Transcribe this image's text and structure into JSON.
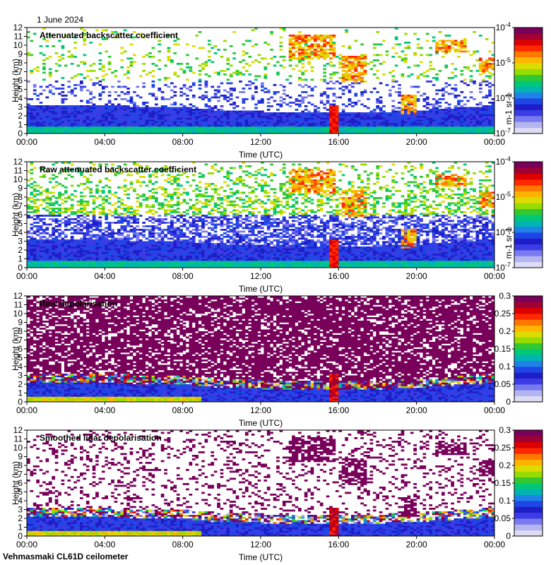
{
  "date": "1 June 2024",
  "instrument": "Vehmasmaki CL61D ceilometer",
  "colors": {
    "colormap": [
      "#dcdcf5",
      "#b4b4f0",
      "#7a7af0",
      "#3c3ce6",
      "#1e1ec8",
      "#1e46e6",
      "#1e82e6",
      "#00b4b4",
      "#00c878",
      "#32c832",
      "#96dc00",
      "#dcdc00",
      "#ffb400",
      "#ff7800",
      "#ff2800",
      "#dc0000",
      "#a00032",
      "#78005a"
    ]
  },
  "chart_data": [
    {
      "type": "heatmap",
      "title": "Attenuated backscatter coefficient",
      "xlabel": "Time (UTC)",
      "ylabel": "Height (km)",
      "xlim": [
        0,
        24
      ],
      "ylim": [
        0,
        12
      ],
      "x_ticks": [
        "00:00",
        "04:00",
        "08:00",
        "12:00",
        "16:00",
        "20:00",
        "00:00"
      ],
      "y_ticks": [
        "0",
        "1",
        "2",
        "3",
        "4",
        "5",
        "6",
        "7",
        "8",
        "9",
        "10",
        "11",
        "12"
      ],
      "colorbar": {
        "scale": "log",
        "ticks": [
          "10-7",
          "10-6",
          "10-5",
          "10-4"
        ],
        "min_exp": -7,
        "max_exp": -4,
        "label": "m-1 sr-1"
      },
      "noise_level": 0.32
    },
    {
      "type": "heatmap",
      "title": "Raw attenuated backscatter coefficient",
      "xlabel": "Time (UTC)",
      "ylabel": "Height (km)",
      "xlim": [
        0,
        24
      ],
      "ylim": [
        0,
        12
      ],
      "x_ticks": [
        "00:00",
        "04:00",
        "08:00",
        "12:00",
        "16:00",
        "20:00",
        "00:00"
      ],
      "y_ticks": [
        "0",
        "1",
        "2",
        "3",
        "4",
        "5",
        "6",
        "7",
        "8",
        "9",
        "10",
        "11",
        "12"
      ],
      "colorbar": {
        "scale": "log",
        "ticks": [
          "10-7",
          "10-6",
          "10-5",
          "10-4"
        ],
        "min_exp": -7,
        "max_exp": -4,
        "label": "m-1 sr-1"
      },
      "noise_level": 0.85
    },
    {
      "type": "heatmap",
      "title": "Raw depolarisation",
      "xlabel": "Time (UTC)",
      "ylabel": "Height (km)",
      "xlim": [
        0,
        24
      ],
      "ylim": [
        0,
        12
      ],
      "x_ticks": [
        "00:00",
        "04:00",
        "08:00",
        "12:00",
        "16:00",
        "20:00",
        "00:00"
      ],
      "y_ticks": [
        "0",
        "1",
        "2",
        "3",
        "4",
        "5",
        "6",
        "7",
        "8",
        "9",
        "10",
        "11",
        "12"
      ],
      "colorbar": {
        "scale": "linear",
        "ticks": [
          "0",
          "0.05",
          "0.1",
          "0.15",
          "0.2",
          "0.25",
          "0.3"
        ],
        "min": 0,
        "max": 0.3
      },
      "noise_level": 0.75
    },
    {
      "type": "heatmap",
      "title": "Smoothed lidar depolarisation",
      "xlabel": "Time (UTC)",
      "ylabel": "Height (km)",
      "xlim": [
        0,
        24
      ],
      "ylim": [
        0,
        12
      ],
      "x_ticks": [
        "00:00",
        "04:00",
        "08:00",
        "12:00",
        "16:00",
        "20:00",
        "00:00"
      ],
      "y_ticks": [
        "0",
        "1",
        "2",
        "3",
        "4",
        "5",
        "6",
        "7",
        "8",
        "9",
        "10",
        "11",
        "12"
      ],
      "colorbar": {
        "scale": "linear",
        "ticks": [
          "0",
          "0.05",
          "0.1",
          "0.15",
          "0.2",
          "0.25",
          "0.3"
        ],
        "min": 0,
        "max": 0.3
      },
      "noise_level": 0.18
    }
  ],
  "features": {
    "boundary_layer_top_km": {
      "times": [
        0,
        8,
        10,
        16,
        20,
        24
      ],
      "heights": [
        3.3,
        3.0,
        2.6,
        2.3,
        2.6,
        3.2
      ]
    },
    "precipitation_shaft": {
      "time_start": 15.6,
      "time_end": 16.0,
      "height_top_km": 3.2
    },
    "clouds": [
      {
        "time_start": 13.4,
        "time_end": 15.8,
        "base_km": 8.5,
        "top_km": 11.2
      },
      {
        "time_start": 16.2,
        "time_end": 17.4,
        "base_km": 5.8,
        "top_km": 8.8
      },
      {
        "time_start": 19.2,
        "time_end": 20.0,
        "base_km": 2.2,
        "top_km": 4.4
      },
      {
        "time_start": 21.0,
        "time_end": 22.5,
        "base_km": 9.2,
        "top_km": 10.6
      },
      {
        "time_start": 23.2,
        "time_end": 24.0,
        "base_km": 6.8,
        "top_km": 8.6
      }
    ]
  }
}
